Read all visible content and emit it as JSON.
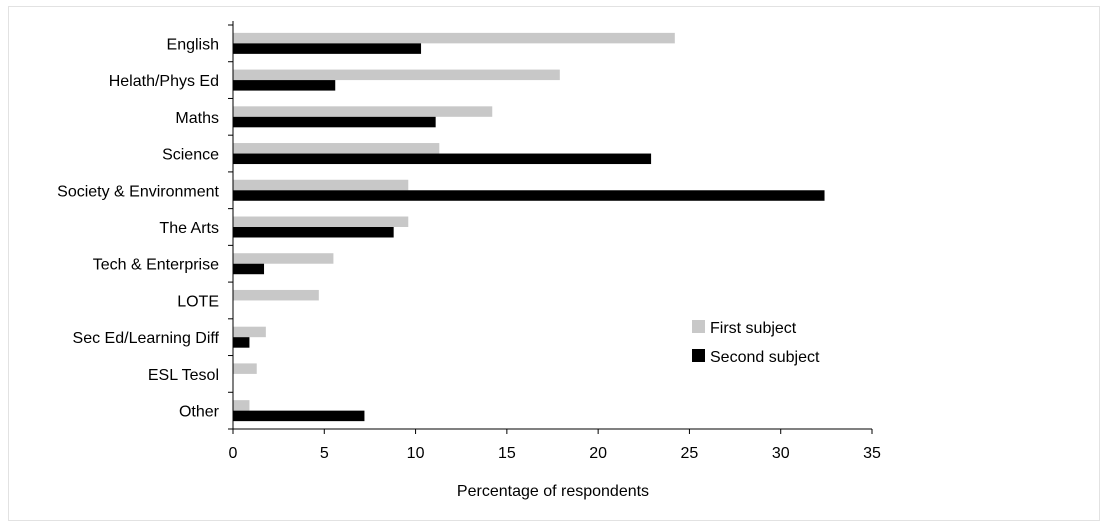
{
  "chart_data": {
    "type": "bar",
    "orientation": "horizontal",
    "categories": [
      "English",
      "Helath/Phys Ed",
      "Maths",
      "Science",
      "Society & Environment",
      "The Arts",
      "Tech & Enterprise",
      "LOTE",
      "Sec Ed/Learning Diff",
      "ESL Tesol",
      "Other"
    ],
    "series": [
      {
        "name": "First subject",
        "color": "#c8c8c8",
        "values": [
          24.2,
          17.9,
          14.2,
          11.3,
          9.6,
          9.6,
          5.5,
          4.7,
          1.8,
          1.3,
          0.9
        ]
      },
      {
        "name": "Second subject",
        "color": "#000000",
        "values": [
          10.3,
          5.6,
          11.1,
          22.9,
          32.4,
          8.8,
          1.7,
          0,
          0.9,
          0,
          7.2
        ]
      }
    ],
    "xlabel": "Percentage of respondents",
    "xlim": [
      0,
      35
    ],
    "xticks": [
      0,
      5,
      10,
      15,
      20,
      25,
      30,
      35
    ],
    "grid": false,
    "legend_position": "right"
  }
}
